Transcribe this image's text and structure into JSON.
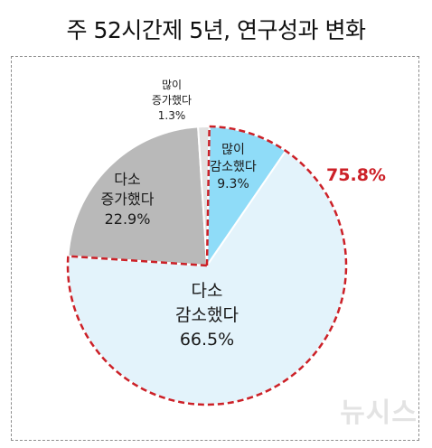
{
  "title": "주 52시간제 5년, 연구성과 변화",
  "watermark": "뉴시스",
  "chart_data": {
    "type": "pie",
    "title": "주 52시간제 5년, 연구성과 변화",
    "start_angle_deg": 1,
    "slices": [
      {
        "label_lines": [
          "많이",
          "감소했다"
        ],
        "value": 9.3,
        "value_label": "9.3%",
        "color": "#8fdcf8"
      },
      {
        "label_lines": [
          "다소",
          "감소했다"
        ],
        "value": 66.5,
        "value_label": "66.5%",
        "color": "#e3f3fb"
      },
      {
        "label_lines": [
          "다소",
          "증가했다"
        ],
        "value": 22.9,
        "value_label": "22.9%",
        "color": "#b9b9b9"
      },
      {
        "label_lines": [
          "많이",
          "증가했다"
        ],
        "value": 1.3,
        "value_label": "1.3%",
        "color": "#e1e1e1"
      }
    ],
    "callout": {
      "label": "75.8%",
      "color": "#cc2027",
      "slices": [
        0,
        1
      ]
    }
  }
}
